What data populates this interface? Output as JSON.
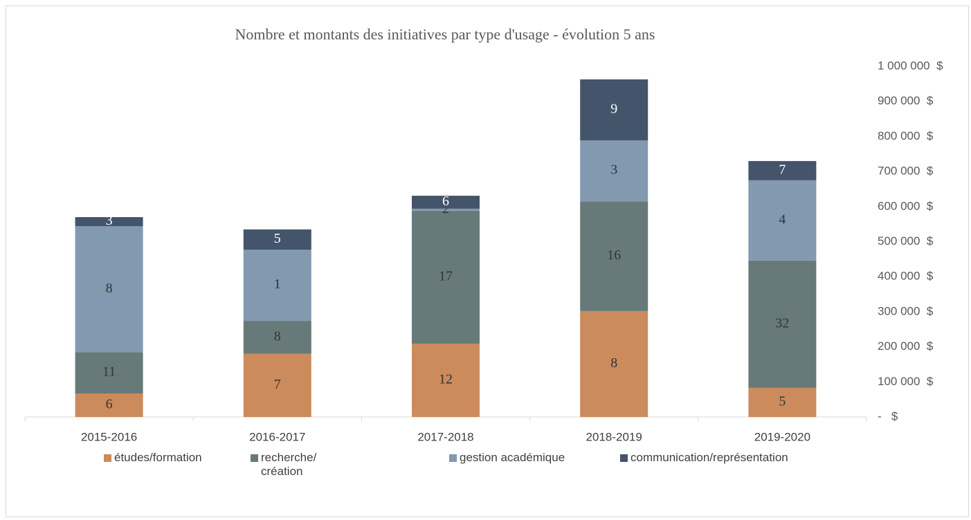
{
  "chart_data": {
    "type": "stacked-bar",
    "title": "Nombre et montants des initiatives par type d'usage - évolution 5 ans",
    "categories": [
      "2015-2016",
      "2016-2017",
      "2017-2018",
      "2018-2019",
      "2019-2020"
    ],
    "series": [
      {
        "name": "études/formation",
        "color": "#cc8b5c",
        "values": [
          67000,
          180000,
          209000,
          302000,
          83000
        ],
        "counts": [
          6,
          7,
          12,
          8,
          5
        ]
      },
      {
        "name": "recherche/ création",
        "color": "#677a79",
        "values": [
          118000,
          94000,
          379000,
          313000,
          363000
        ],
        "counts": [
          11,
          8,
          17,
          16,
          32
        ]
      },
      {
        "name": "gestion académique",
        "color": "#8299b0",
        "values": [
          359000,
          203000,
          6000,
          174000,
          229000
        ],
        "counts": [
          8,
          1,
          2,
          3,
          4
        ]
      },
      {
        "name": "communication/représentation",
        "color": "#44546a",
        "values": [
          26000,
          58000,
          37000,
          174000,
          55000
        ],
        "counts": [
          3,
          5,
          6,
          9,
          7
        ]
      }
    ],
    "ylim": [
      0,
      1000000
    ],
    "yticks": [
      {
        "value": 0,
        "label": "-   $"
      },
      {
        "value": 100000,
        "label": "100 000  $"
      },
      {
        "value": 200000,
        "label": "200 000  $"
      },
      {
        "value": 300000,
        "label": "300 000  $"
      },
      {
        "value": 400000,
        "label": "400 000  $"
      },
      {
        "value": 500000,
        "label": "500 000  $"
      },
      {
        "value": 600000,
        "label": "600 000  $"
      },
      {
        "value": 700000,
        "label": "700 000  $"
      },
      {
        "value": 800000,
        "label": "800 000  $"
      },
      {
        "value": 900000,
        "label": "900 000  $"
      },
      {
        "value": 1000000,
        "label": "1 000 000  $"
      }
    ],
    "y_axis_side": "right",
    "legend": "bottom"
  }
}
